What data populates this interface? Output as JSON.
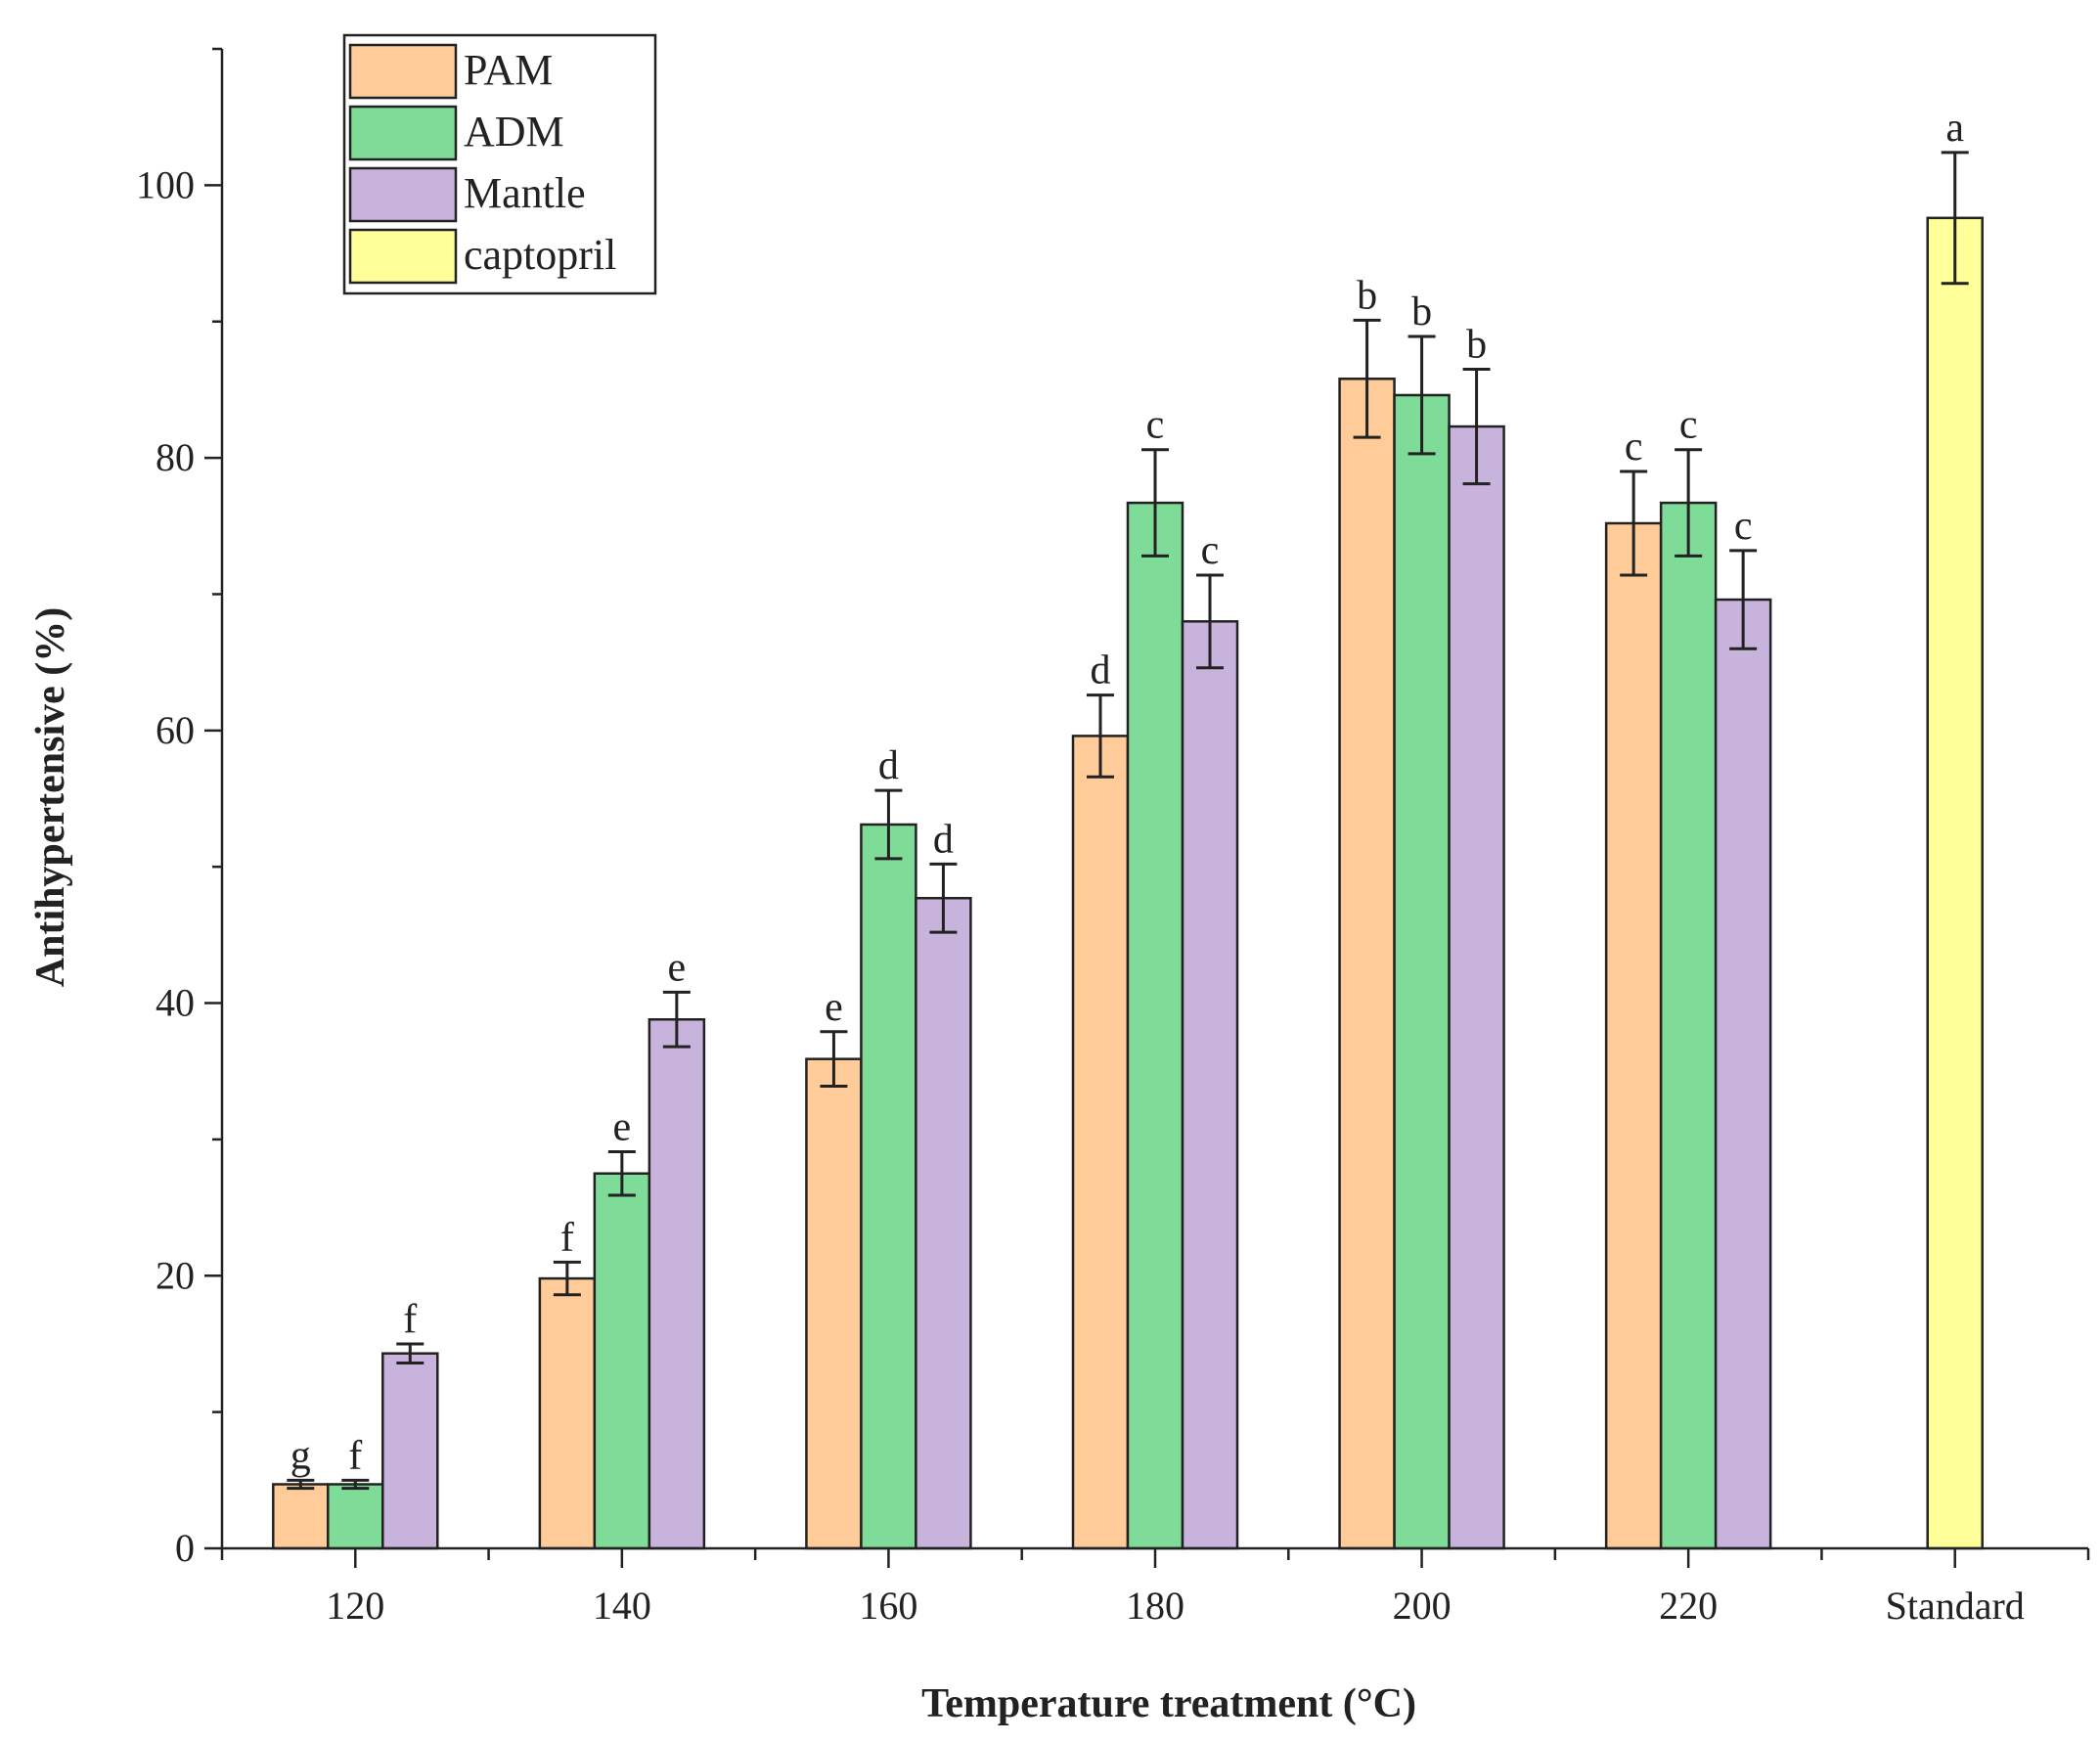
{
  "chart_data": {
    "type": "bar",
    "title": "",
    "xlabel": "Temperature treatment (°C)",
    "ylabel": "Antihypertensive (%)",
    "ylim": [
      0,
      110
    ],
    "yticks": [
      0,
      20,
      40,
      60,
      80,
      100
    ],
    "categories": [
      "120",
      "140",
      "160",
      "180",
      "200",
      "220",
      "Standard"
    ],
    "legend_position": "top-left",
    "series": [
      {
        "name": "PAM",
        "color": "#FFCC99",
        "values": [
          4.7,
          19.8,
          35.9,
          59.6,
          85.8,
          75.2,
          null
        ],
        "errors": [
          0.3,
          1.2,
          2.0,
          3.0,
          4.3,
          3.8,
          null
        ],
        "labels": [
          "g",
          "f",
          "e",
          "d",
          "b",
          "c",
          null
        ]
      },
      {
        "name": "ADM",
        "color": "#7FDB98",
        "values": [
          4.7,
          27.5,
          53.1,
          76.7,
          84.6,
          76.7,
          null
        ],
        "errors": [
          0.3,
          1.6,
          2.5,
          3.9,
          4.3,
          3.9,
          null
        ],
        "labels": [
          "f",
          "e",
          "d",
          "c",
          "b",
          "c",
          null
        ]
      },
      {
        "name": "Mantle",
        "color": "#C8B3DC",
        "values": [
          14.3,
          38.8,
          47.7,
          68.0,
          82.3,
          69.6,
          null
        ],
        "errors": [
          0.7,
          2.0,
          2.5,
          3.4,
          4.2,
          3.6,
          null
        ],
        "labels": [
          "f",
          "e",
          "d",
          "c",
          "b",
          "c",
          null
        ]
      },
      {
        "name": "captopril",
        "color": "#FFFF99",
        "values": [
          null,
          null,
          null,
          null,
          null,
          null,
          97.6
        ],
        "errors": [
          null,
          null,
          null,
          null,
          null,
          null,
          4.8
        ],
        "labels": [
          null,
          null,
          null,
          null,
          null,
          null,
          "a"
        ]
      }
    ]
  }
}
